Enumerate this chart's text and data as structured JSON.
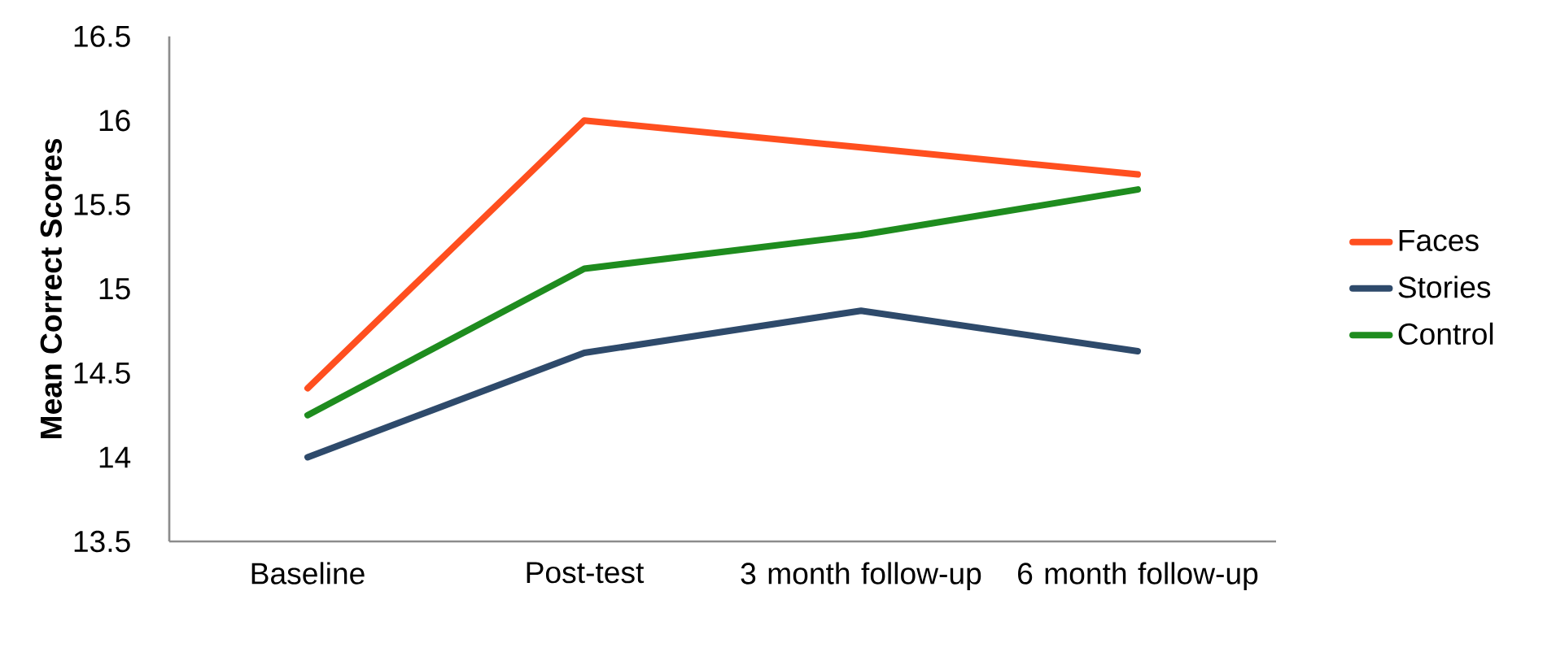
{
  "chart_data": {
    "type": "line",
    "ylabel": "**Mean Correct Scores**",
    "categories": [
      "Baseline",
      "Post-test",
      "3 month follow-up",
      "6 month follow-up"
    ],
    "series": [
      {
        "name": "Faces",
        "color": "#ff4f1f",
        "values": [
          14.41,
          16.0,
          15.84,
          15.68
        ]
      },
      {
        "name": "Stories",
        "color": "#2e4a6b",
        "values": [
          14.0,
          14.62,
          14.87,
          14.63
        ]
      },
      {
        "name": "Control",
        "color": "#1e8c1e",
        "values": [
          14.25,
          15.12,
          15.32,
          15.59
        ]
      }
    ],
    "ylim": [
      13.5,
      16.5
    ],
    "yticks": [
      13.5,
      14,
      14.5,
      15,
      15.5,
      16,
      16.5
    ],
    "grid": false,
    "legend": "right",
    "marker": "none",
    "line_style": "solid"
  }
}
